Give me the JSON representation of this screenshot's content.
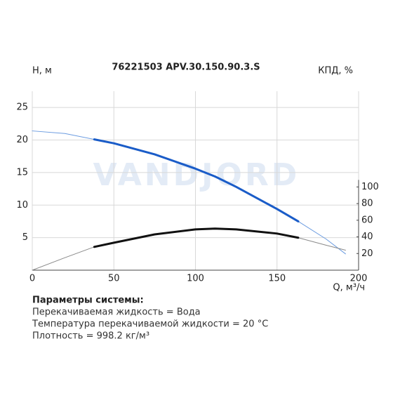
{
  "chart_data": {
    "type": "line",
    "title": "76221503 APV.30.150.90.3.S",
    "y_label": "H, м",
    "y2_label": "КПД, %",
    "x_label": "Q, м³/ч",
    "watermark": "VANDJORD",
    "x": [
      0,
      20,
      38,
      50,
      75,
      100,
      112,
      125,
      150,
      163,
      180,
      192
    ],
    "series": [
      {
        "color": "#6a9be0",
        "width": 1,
        "values": [
          21.4,
          21.0,
          20.1,
          null,
          null,
          null,
          null,
          null,
          null,
          7.5,
          4.8,
          2.5
        ]
      },
      {
        "color": "#1a5cc8",
        "width": 3,
        "values": [
          null,
          null,
          20.1,
          19.5,
          17.8,
          15.6,
          14.4,
          12.8,
          9.4,
          7.5,
          null,
          null
        ]
      },
      {
        "color": "#8a8a8a",
        "width": 1,
        "axis": "y2",
        "values": [
          0,
          15,
          28,
          null,
          null,
          null,
          null,
          null,
          null,
          39,
          30,
          24
        ]
      },
      {
        "color": "#111111",
        "width": 3,
        "axis": "y2",
        "values": [
          null,
          null,
          28,
          33,
          43,
          49,
          50,
          49,
          44,
          39,
          null,
          null
        ]
      }
    ],
    "xlim": [
      0,
      200
    ],
    "xticks": [
      0,
      50,
      100,
      150,
      200
    ],
    "ylim": [
      0,
      27.5
    ],
    "yticks": [
      5,
      10,
      15,
      20,
      25
    ],
    "y2lim": [
      0,
      215
    ],
    "y2ticks": [
      20,
      40,
      60,
      80,
      100
    ],
    "grid": true,
    "system": {
      "heading": "Параметры системы:",
      "lines": [
        "Перекачиваемая жидкость = Вода",
        "Температура перекачиваемой жидкости = 20 °C",
        "Плотность = 998.2 кг/м³"
      ]
    }
  }
}
